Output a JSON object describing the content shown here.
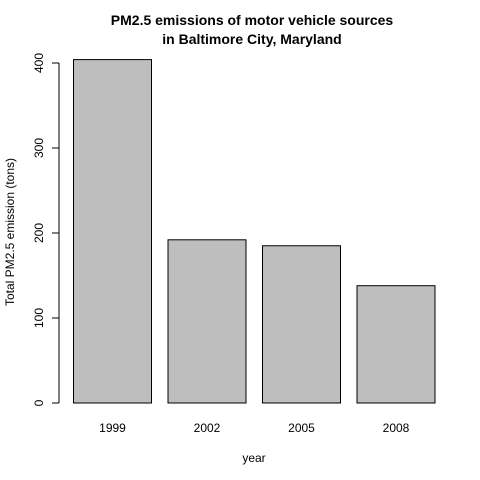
{
  "chart_data": {
    "type": "bar",
    "title_lines": [
      "PM2.5 emissions of motor vehicle sources",
      "in Baltimore City, Maryland"
    ],
    "xlabel": "year",
    "ylabel": "Total PM2.5 emission (tons)",
    "categories": [
      "1999",
      "2002",
      "2005",
      "2008"
    ],
    "values": [
      404,
      192,
      185,
      138
    ],
    "ylim": [
      0,
      400
    ],
    "yticks": [
      "0",
      "100",
      "200",
      "300",
      "400"
    ],
    "grid": false,
    "bar_color": "#bebebe"
  }
}
